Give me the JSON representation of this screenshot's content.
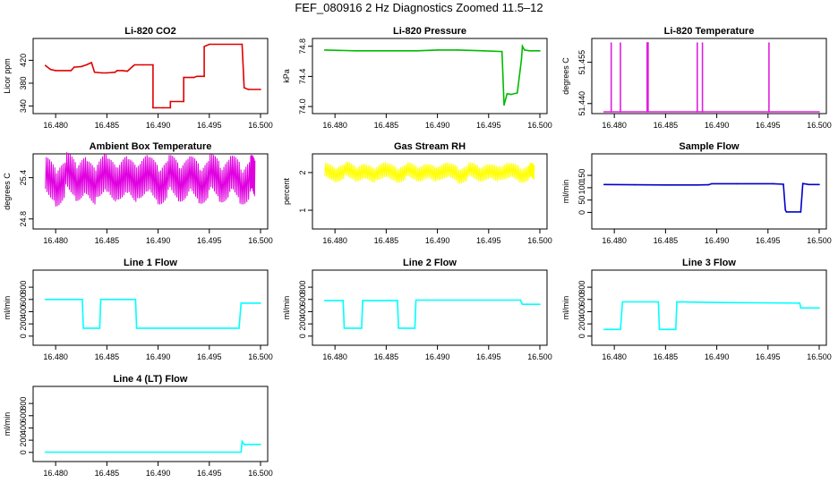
{
  "figure": {
    "title": "FEF_080916  2 Hz Diagnostics Zoomed 11.5–12"
  },
  "chart_data": [
    {
      "type": "line",
      "title": "Li-820 CO2",
      "ylabel": "Licor ppm",
      "color": "#e00000",
      "xlim": [
        16.4785,
        16.5
      ],
      "xticks": [
        16.48,
        16.485,
        16.49,
        16.495,
        16.5
      ],
      "ylim": [
        330,
        455
      ],
      "yticks": [
        340,
        380,
        420
      ],
      "series": [
        {
          "x": [
            16.479,
            16.4795,
            16.48,
            16.4815,
            16.4818,
            16.4825,
            16.483,
            16.4835,
            16.4838,
            16.4845,
            16.485,
            16.4858,
            16.486,
            16.4865,
            16.487,
            16.4875,
            16.4877,
            16.4885,
            16.4895,
            16.4895,
            16.4898,
            16.4905,
            16.4912,
            16.4912,
            16.4925,
            16.4925,
            16.4935,
            16.4938,
            16.4945,
            16.4945,
            16.495,
            16.4982,
            16.4984,
            16.4988,
            16.5
          ],
          "y": [
            411,
            404,
            402,
            402,
            408,
            409,
            412,
            416,
            399,
            398,
            398,
            399,
            402,
            402,
            401,
            409,
            412,
            412,
            412,
            337,
            337,
            337,
            337,
            348,
            348,
            390,
            390,
            392,
            392,
            444,
            448,
            448,
            372,
            369,
            369
          ]
        }
      ]
    },
    {
      "type": "line",
      "title": "Li-820 Pressure",
      "ylabel": "kPa",
      "color": "#00bb00",
      "xlim": [
        16.4785,
        16.5
      ],
      "xticks": [
        16.48,
        16.485,
        16.49,
        16.495,
        16.5
      ],
      "ylim": [
        73.93,
        74.88
      ],
      "yticks": [
        74.0,
        74.4,
        74.8
      ],
      "series": [
        {
          "x": [
            16.479,
            16.482,
            16.485,
            16.488,
            16.49,
            16.492,
            16.4945,
            16.4963,
            16.4965,
            16.4968,
            16.4972,
            16.4978,
            16.4982,
            16.4983,
            16.4985,
            16.499,
            16.5
          ],
          "y": [
            74.75,
            74.74,
            74.74,
            74.74,
            74.75,
            74.75,
            74.74,
            74.73,
            74.02,
            74.17,
            74.16,
            74.18,
            74.62,
            74.8,
            74.75,
            74.74,
            74.74
          ]
        }
      ]
    },
    {
      "type": "line",
      "title": "Li-820 Temperature",
      "ylabel": "degrees C",
      "color": "#e020e0",
      "xlim": [
        16.4785,
        16.5
      ],
      "xticks": [
        16.48,
        16.485,
        16.49,
        16.495,
        16.5
      ],
      "ylim": [
        51.437,
        51.463
      ],
      "yticks": [
        51.44,
        51.455
      ],
      "series": [
        {
          "x": [
            16.479,
            16.4797,
            16.4797,
            16.4797,
            16.4806,
            16.4806,
            16.4806,
            16.4832,
            16.4832,
            16.4833,
            16.4833,
            16.4881,
            16.4881,
            16.4881,
            16.4886,
            16.4886,
            16.4886,
            16.4951,
            16.4951,
            16.4951,
            16.5
          ],
          "y": [
            51.437,
            51.437,
            51.462,
            51.437,
            51.437,
            51.462,
            51.437,
            51.437,
            51.462,
            51.462,
            51.437,
            51.437,
            51.462,
            51.437,
            51.437,
            51.462,
            51.437,
            51.437,
            51.462,
            51.437,
            51.437
          ]
        }
      ]
    },
    {
      "type": "line",
      "title": "Ambient Box Temperature",
      "ylabel": "degrees C",
      "color": "#e000e0",
      "xlim": [
        16.4785,
        16.5
      ],
      "xticks": [
        16.48,
        16.485,
        16.49,
        16.495,
        16.5
      ],
      "ylim": [
        24.68,
        25.72
      ],
      "yticks": [
        24.8,
        25.4
      ],
      "series": [
        {
          "x": [
            16.479,
            16.48,
            16.481,
            16.482,
            16.483,
            16.484,
            16.485,
            16.486,
            16.487,
            16.488,
            16.489,
            16.49,
            16.491,
            16.492,
            16.493,
            16.494,
            16.495,
            16.496,
            16.497,
            16.498,
            16.499,
            16.4995
          ],
          "y": [
            25.38,
            25.3,
            25.45,
            25.38,
            25.32,
            25.44,
            25.36,
            25.4,
            25.35,
            25.42,
            25.38,
            25.33,
            25.41,
            25.37,
            25.39,
            25.34,
            25.42,
            25.36,
            25.4,
            25.33,
            25.41,
            25.38
          ],
          "spread": 0.32
        }
      ]
    },
    {
      "type": "line",
      "title": "Gas Stream RH",
      "ylabel": "percent",
      "color": "#ffff00",
      "xlim": [
        16.4785,
        16.5
      ],
      "xticks": [
        16.48,
        16.485,
        16.49,
        16.495,
        16.5
      ],
      "ylim": [
        0.55,
        2.45
      ],
      "yticks": [
        1.0,
        2.0
      ],
      "series": [
        {
          "x": [
            16.479,
            16.48,
            16.481,
            16.482,
            16.483,
            16.484,
            16.485,
            16.486,
            16.487,
            16.488,
            16.489,
            16.49,
            16.491,
            16.492,
            16.493,
            16.494,
            16.495,
            16.496,
            16.497,
            16.498,
            16.499,
            16.4995
          ],
          "y": [
            2.02,
            1.98,
            2.05,
            2.0,
            1.96,
            2.04,
            2.01,
            1.97,
            2.03,
            2.0,
            1.98,
            2.04,
            2.01,
            1.95,
            2.03,
            2.0,
            1.98,
            2.04,
            2.01,
            1.97,
            2.02,
            2.0
          ],
          "spread": 0.24
        }
      ]
    },
    {
      "type": "line",
      "title": "Sample Flow",
      "ylabel": "ml/min",
      "color": "#0000cc",
      "xlim": [
        16.4785,
        16.5
      ],
      "xticks": [
        16.48,
        16.485,
        16.49,
        16.495,
        16.5
      ],
      "ylim": [
        -60,
        230
      ],
      "yticks": [
        0,
        50,
        100,
        150
      ],
      "series": [
        {
          "x": [
            16.479,
            16.482,
            16.485,
            16.488,
            16.4892,
            16.4895,
            16.492,
            16.4955,
            16.4965,
            16.4967,
            16.4968,
            16.4982,
            16.4984,
            16.499,
            16.5
          ],
          "y": [
            113,
            112,
            111,
            111,
            112,
            116,
            116,
            116,
            114,
            10,
            2,
            2,
            117,
            113,
            113
          ]
        }
      ]
    },
    {
      "type": "line",
      "title": "Line 1 Flow",
      "ylabel": "ml/min",
      "color": "#00ffff",
      "xlim": [
        16.4785,
        16.5
      ],
      "xticks": [
        16.48,
        16.485,
        16.49,
        16.495,
        16.5
      ],
      "ylim": [
        -120,
        1050
      ],
      "yticks": [
        0,
        200,
        400,
        600,
        800
      ],
      "series": [
        {
          "x": [
            16.479,
            16.4826,
            16.4827,
            16.4843,
            16.4844,
            16.4878,
            16.4879,
            16.4979,
            16.4981,
            16.5
          ],
          "y": [
            600,
            600,
            130,
            130,
            600,
            600,
            130,
            130,
            540,
            540
          ]
        }
      ]
    },
    {
      "type": "line",
      "title": "Line 2 Flow",
      "ylabel": "ml/min",
      "color": "#00ffff",
      "xlim": [
        16.4785,
        16.5
      ],
      "xticks": [
        16.48,
        16.485,
        16.49,
        16.495,
        16.5
      ],
      "ylim": [
        -120,
        1050
      ],
      "yticks": [
        0,
        200,
        400,
        600,
        800
      ],
      "series": [
        {
          "x": [
            16.479,
            16.4808,
            16.4809,
            16.4826,
            16.4827,
            16.4861,
            16.4862,
            16.4878,
            16.4879,
            16.4981,
            16.4983,
            16.5
          ],
          "y": [
            580,
            580,
            130,
            130,
            580,
            580,
            130,
            130,
            590,
            590,
            520,
            520
          ]
        }
      ]
    },
    {
      "type": "line",
      "title": "Line 3 Flow",
      "ylabel": "ml/min",
      "color": "#00ffff",
      "xlim": [
        16.4785,
        16.5
      ],
      "xticks": [
        16.48,
        16.485,
        16.49,
        16.495,
        16.5
      ],
      "ylim": [
        -120,
        1050
      ],
      "yticks": [
        0,
        200,
        400,
        600,
        800
      ],
      "series": [
        {
          "x": [
            16.479,
            16.4806,
            16.4808,
            16.4843,
            16.4844,
            16.486,
            16.4861,
            16.49,
            16.4981,
            16.4982,
            16.5
          ],
          "y": [
            110,
            110,
            560,
            560,
            110,
            110,
            560,
            550,
            540,
            460,
            460
          ]
        }
      ]
    },
    {
      "type": "line",
      "title": "Line 4 (LT) Flow",
      "ylabel": "ml/min",
      "color": "#00ffff",
      "xlim": [
        16.4785,
        16.5
      ],
      "xticks": [
        16.48,
        16.485,
        16.49,
        16.495,
        16.5
      ],
      "ylim": [
        -120,
        1050
      ],
      "yticks": [
        0,
        200,
        400,
        600,
        800
      ],
      "series": [
        {
          "x": [
            16.479,
            16.4981,
            16.4982,
            16.4984,
            16.5
          ],
          "y": [
            5,
            5,
            180,
            130,
            130
          ]
        }
      ]
    }
  ]
}
